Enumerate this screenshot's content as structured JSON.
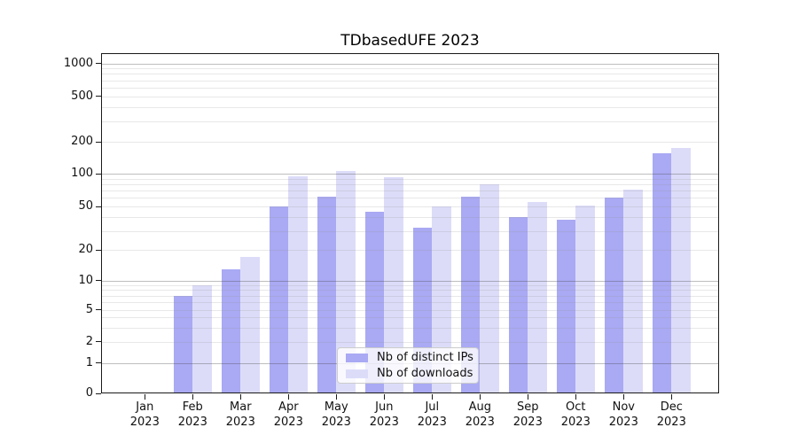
{
  "chart_data": {
    "type": "bar",
    "title": "TDbasedUFE 2023",
    "months": [
      "Jan",
      "Feb",
      "Mar",
      "Apr",
      "May",
      "Jun",
      "Jul",
      "Aug",
      "Sep",
      "Oct",
      "Nov",
      "Dec"
    ],
    "year": "2023",
    "categories": [
      "Jan 2023",
      "Feb 2023",
      "Mar 2023",
      "Apr 2023",
      "May 2023",
      "Jun 2023",
      "Jul 2023",
      "Aug 2023",
      "Sep 2023",
      "Oct 2023",
      "Nov 2023",
      "Dec 2023"
    ],
    "series": [
      {
        "name": "Nb of distinct IPs",
        "color": "#a9a9f4",
        "values": [
          0,
          7,
          13,
          50,
          62,
          45,
          32,
          62,
          40,
          38,
          61,
          155
        ]
      },
      {
        "name": "Nb of downloads",
        "color": "#dcdcf9",
        "values": [
          0,
          9,
          17,
          95,
          105,
          93,
          50,
          80,
          55,
          51,
          72,
          175
        ]
      }
    ],
    "yscale": "symlog",
    "yticks": [
      0,
      1,
      2,
      5,
      10,
      20,
      50,
      100,
      200,
      500,
      1000
    ],
    "major_grid_values": [
      1,
      10,
      100,
      1000
    ],
    "ylim": [
      0,
      1200
    ],
    "xlabel": "",
    "ylabel": "",
    "grid": "horizontal",
    "legend_position": "lower center",
    "axis_color": "#1a1a1a",
    "text_color": "#111111",
    "background": "#ffffff"
  }
}
